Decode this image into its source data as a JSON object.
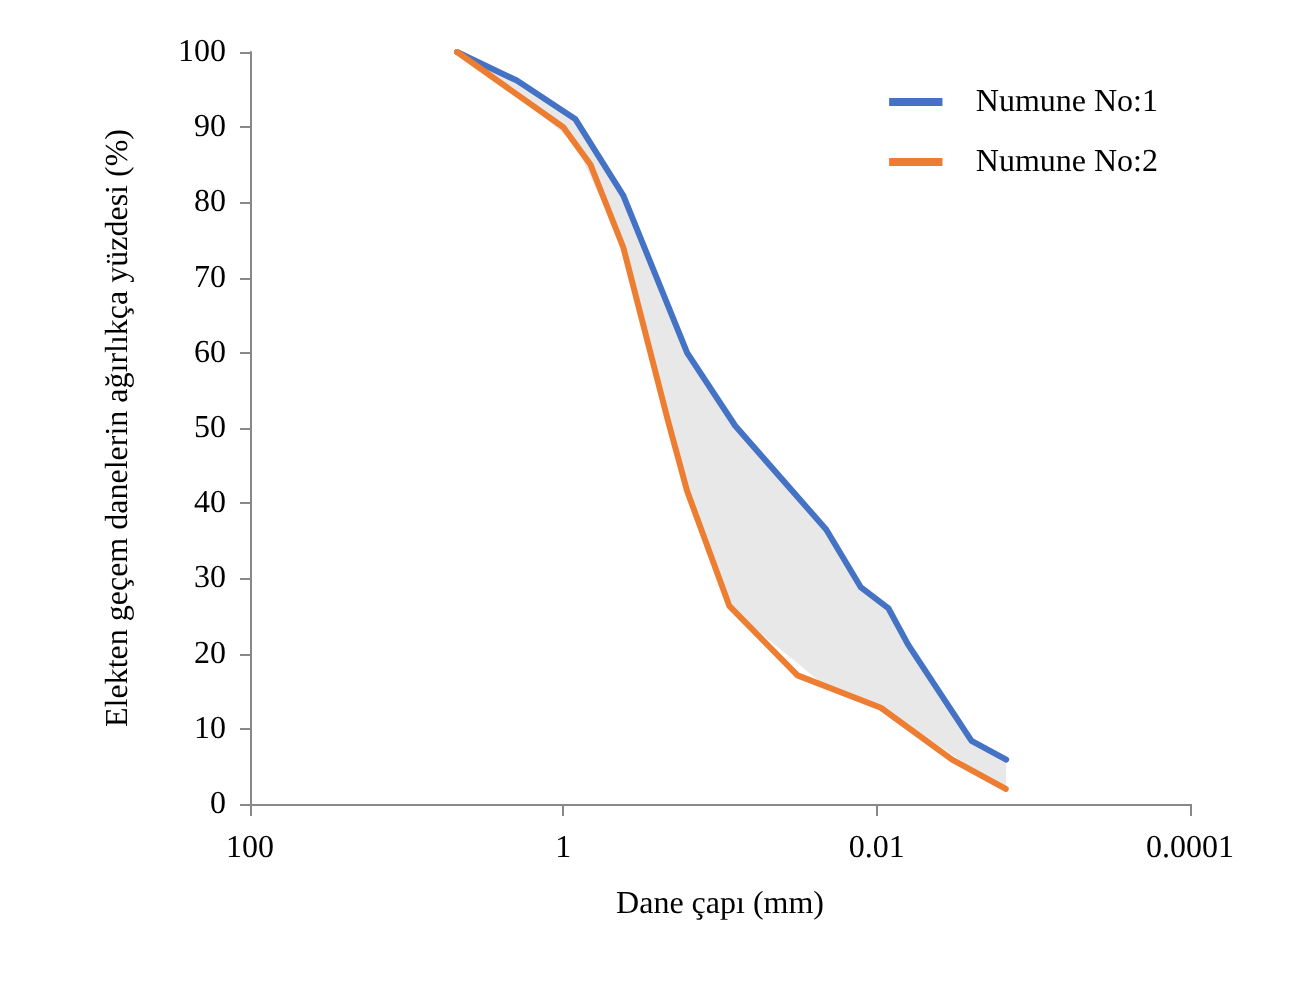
{
  "chart_data": {
    "type": "line",
    "xlabel": "Dane çapı (mm)",
    "ylabel": "Elekten geçem danelerin ağırlıkça yüzdesi (%)",
    "log": "x",
    "xlim": [
      100,
      0.0001
    ],
    "xticks": [
      100,
      1,
      0.01,
      0.0001
    ],
    "ylim": [
      0,
      100
    ],
    "yticks": [
      0,
      10,
      20,
      30,
      40,
      50,
      60,
      70,
      80,
      90,
      100
    ],
    "grid": false,
    "legend": "top right",
    "marker": "none",
    "line_style": "solid",
    "series": [
      {
        "name": "Numune No:1",
        "color": "#4472c4",
        "x": [
          4.77,
          1.98,
          0.84,
          0.414,
          0.162,
          0.08,
          0.021,
          0.0126,
          0.0084,
          0.0063,
          0.00248,
          0.00149
        ],
        "values": [
          100,
          96.2,
          91.1,
          80.9,
          60,
          50.3,
          36.5,
          28.8,
          26,
          21.2,
          8.4,
          5.9
        ],
        "lower": [
          100,
          94.4,
          87.8,
          74,
          41.6,
          25.5,
          15.6,
          13.8,
          12,
          10.5,
          4.8,
          2
        ],
        "upper": [
          100,
          96.2,
          91.1,
          80.9,
          60,
          50.3,
          36.5,
          28.8,
          26,
          21.2,
          8.4,
          5.9
        ]
      },
      {
        "name": "Numune No:2",
        "color": "#ed7d31",
        "x": [
          4.77,
          1.0,
          0.67,
          0.414,
          0.215,
          0.162,
          0.087,
          0.032,
          0.0094,
          0.0033,
          0.0015
        ],
        "values": [
          100,
          90,
          85,
          74,
          51,
          41.6,
          26.3,
          17.1,
          12.8,
          5.9,
          2
        ]
      }
    ]
  }
}
